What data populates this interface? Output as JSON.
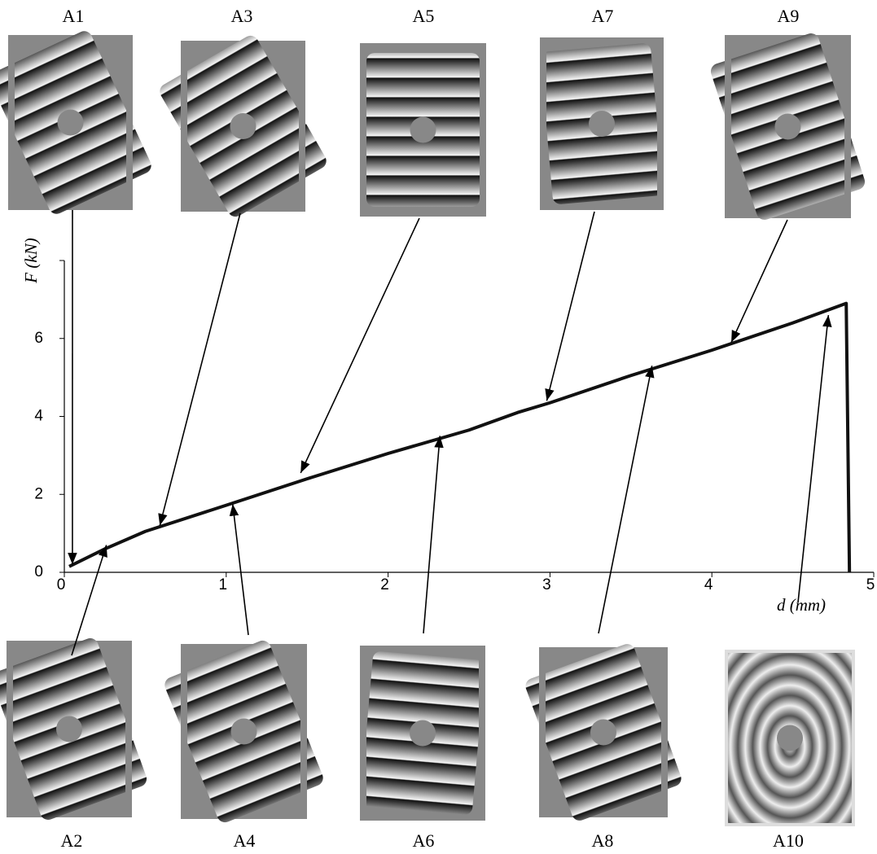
{
  "chart_data": {
    "type": "line",
    "x_label": "d (mm)",
    "y_label": "F (kN)",
    "x": [
      0.03,
      0.25,
      0.5,
      1,
      1.5,
      2,
      2.5,
      2.8,
      3,
      3.5,
      4,
      4.5,
      4.83,
      4.85
    ],
    "series": [
      {
        "color": "#111111",
        "values": [
          0.15,
          0.6,
          1.05,
          1.72,
          2.4,
          3.05,
          3.65,
          4.1,
          4.35,
          5.05,
          5.7,
          6.4,
          6.9,
          0
        ]
      }
    ],
    "xlim": [
      0,
      5
    ],
    "xticks": [
      0,
      1,
      2,
      3,
      4,
      5
    ],
    "ylim": [
      0,
      8
    ],
    "yticks": [
      0,
      2,
      4,
      6
    ],
    "annotations": [
      {
        "label": "A1",
        "x": 0.05,
        "y": 0.2
      },
      {
        "label": "A2",
        "x": 0.26,
        "y": 0.7
      },
      {
        "label": "A3",
        "x": 0.59,
        "y": 1.2
      },
      {
        "label": "A4",
        "x": 1.04,
        "y": 1.75
      },
      {
        "label": "A5",
        "x": 1.46,
        "y": 2.55
      },
      {
        "label": "A6",
        "x": 2.32,
        "y": 3.5
      },
      {
        "label": "A7",
        "x": 2.98,
        "y": 4.4
      },
      {
        "label": "A8",
        "x": 3.63,
        "y": 5.3
      },
      {
        "label": "A9",
        "x": 4.12,
        "y": 5.9
      },
      {
        "label": "A10",
        "x": 4.72,
        "y": 6.6
      }
    ]
  }
}
